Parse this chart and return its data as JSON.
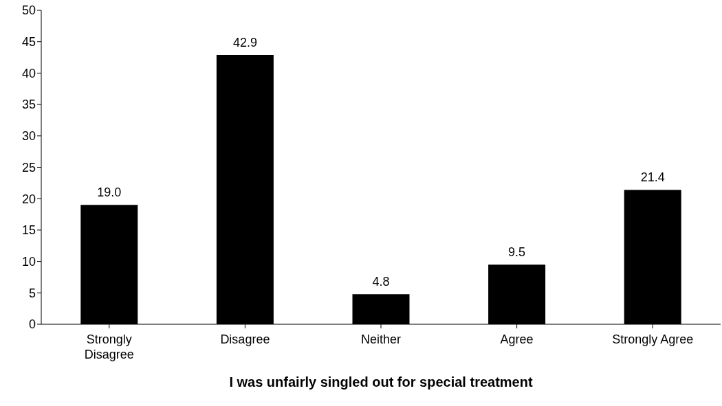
{
  "chart_data": {
    "type": "bar",
    "xlabel": "I was unfairly singled out for special treatment",
    "categories": [
      "Strongly Disagree",
      "Disagree",
      "Neither",
      "Agree",
      "Strongly Agree"
    ],
    "values": [
      19.0,
      42.9,
      4.8,
      9.5,
      21.4
    ],
    "value_labels": [
      "19.0",
      "42.9",
      "4.8",
      "9.5",
      "21.4"
    ],
    "color": "#000000",
    "ylim": [
      0,
      50
    ],
    "yticks": [
      0,
      5,
      10,
      15,
      20,
      25,
      30,
      35,
      40,
      45,
      50
    ],
    "grid": false,
    "legend": false
  }
}
